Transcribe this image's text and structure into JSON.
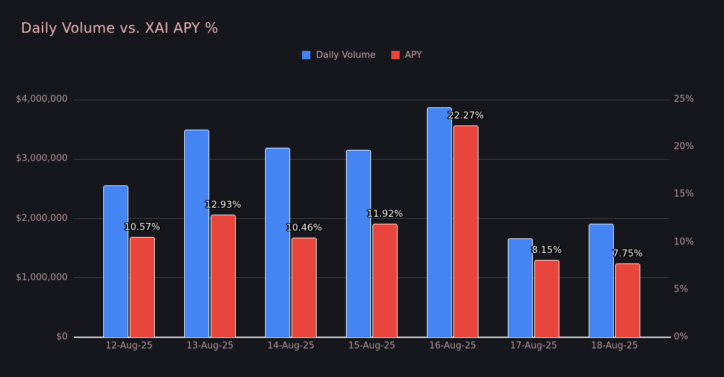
{
  "title": "Daily Volume vs. XAI APY %",
  "legend": [
    {
      "label": "Daily Volume",
      "color": "#4584f3"
    },
    {
      "label": "APY",
      "color": "#e8463c"
    }
  ],
  "colors": {
    "background": "#16171c",
    "title_text": "#edb6b6",
    "tick_text": "#b2979c",
    "legend_text": "#c4a6aa",
    "gridline": "#3e4147",
    "axis_line": "#d9d9d9",
    "bar_border": "#ececec",
    "volume_bar": "#4584f3",
    "apy_bar": "#e8463c",
    "data_label_text": "#ffffff"
  },
  "chart_data": {
    "type": "bar",
    "title": "Daily Volume vs. XAI APY %",
    "categories": [
      "12-Aug-25",
      "13-Aug-25",
      "14-Aug-25",
      "15-Aug-25",
      "16-Aug-25",
      "17-Aug-25",
      "18-Aug-25"
    ],
    "series": [
      {
        "name": "Daily Volume",
        "axis": "left",
        "color": "#4584f3",
        "values": [
          2560000,
          3500000,
          3190000,
          3150000,
          3870000,
          1660000,
          1910000
        ]
      },
      {
        "name": "APY",
        "axis": "right",
        "color": "#e8463c",
        "values": [
          10.57,
          12.93,
          10.46,
          11.92,
          22.27,
          8.15,
          7.75
        ],
        "data_labels": [
          "10.57%",
          "12.93%",
          "10.46%",
          "11.92%",
          "22.27%",
          "8.15%",
          "7.75%"
        ]
      }
    ],
    "left_axis": {
      "min": 0,
      "max": 4000000,
      "tick_labels": [
        "$0",
        "$1,000,000",
        "$2,000,000",
        "$3,000,000",
        "$4,000,000"
      ]
    },
    "right_axis": {
      "min": 0,
      "max": 25,
      "tick_labels": [
        "0%",
        "5%",
        "10%",
        "15%",
        "20%",
        "25%"
      ]
    },
    "grid": true,
    "legend_position": "top-center"
  }
}
